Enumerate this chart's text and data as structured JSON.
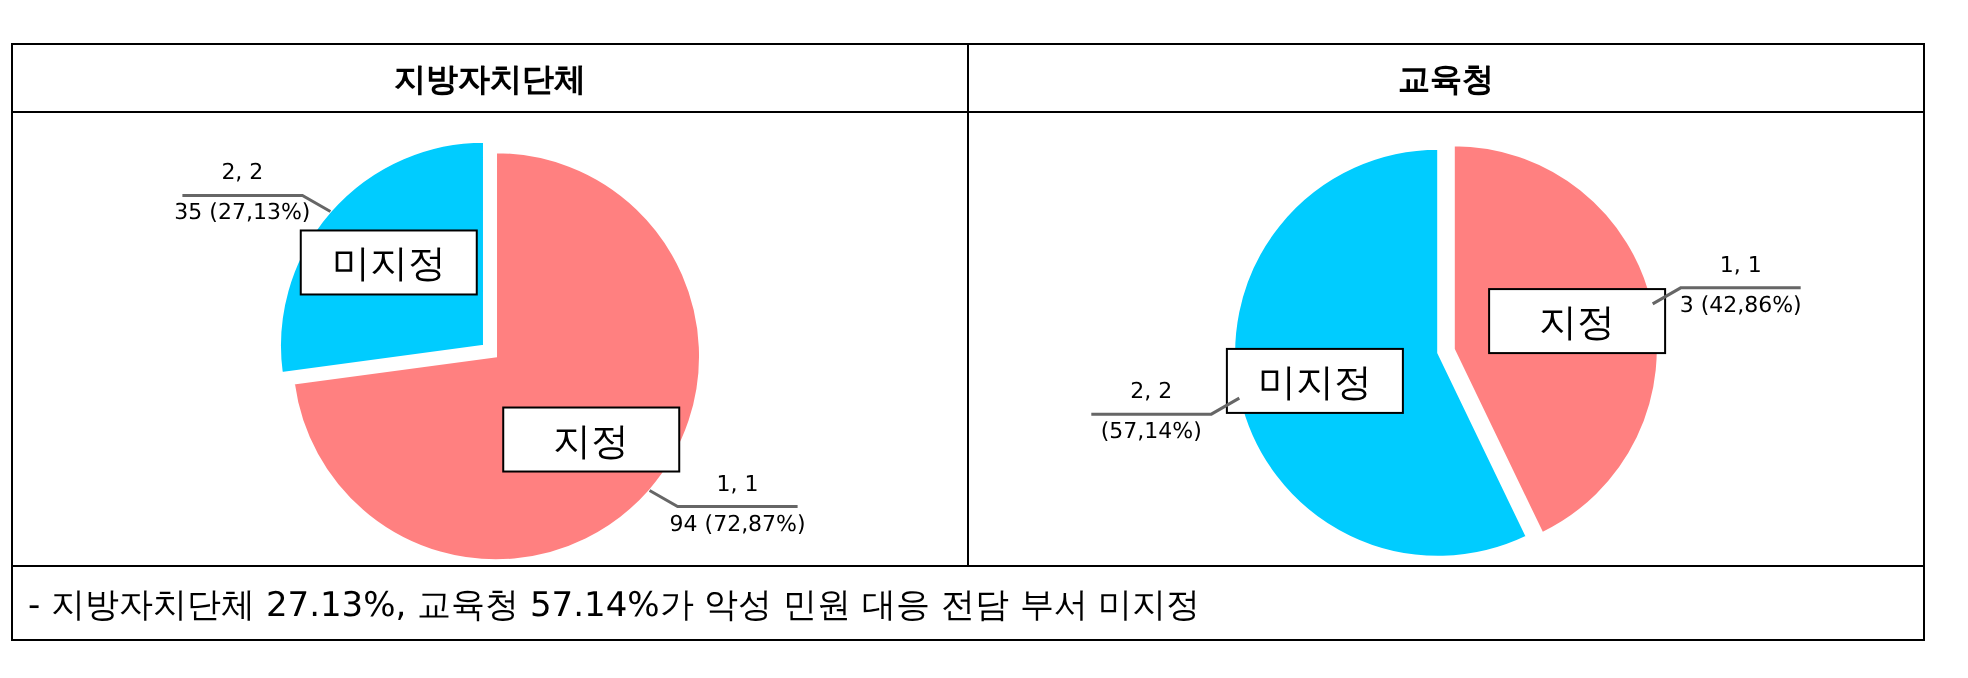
{
  "chart_data": [
    {
      "type": "pie",
      "title": "지방자치단체",
      "categories": [
        "지정",
        "미지정"
      ],
      "values": [
        72.87,
        27.13
      ],
      "colors": [
        "#ff8080",
        "#00ccff"
      ],
      "value_labels": [
        "1, 1\n94 (72,87%)",
        "2, 2\n35 (27,13%)"
      ],
      "annotations": [
        "- 지방자치단체 27.13%, 교육청 57.14%가 악성 민원 대응 전담 부서 미지정"
      ]
    },
    {
      "type": "pie",
      "title": "교육청",
      "categories": [
        "지정",
        "미지정"
      ],
      "values": [
        42.86,
        57.14
      ],
      "colors": [
        "#ff8080",
        "#00ccff"
      ],
      "value_labels": [
        "1, 1\n3 (42,86%)",
        "2, 2\n(57,14%)"
      ]
    }
  ]
}
